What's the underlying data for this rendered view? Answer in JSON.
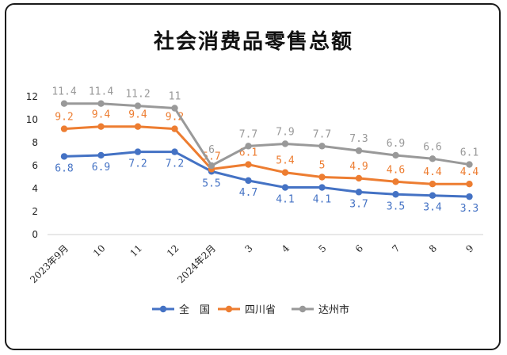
{
  "chart_data": {
    "type": "line",
    "title": "社会消费品零售总额",
    "categories": [
      "2023年9月",
      "10",
      "11",
      "12",
      "2024年2月",
      "3",
      "4",
      "5",
      "6",
      "7",
      "8",
      "9"
    ],
    "ylim": [
      0,
      12
    ],
    "yticks": [
      "0",
      "2",
      "4",
      "6",
      "8",
      "10",
      "12"
    ],
    "grid": false,
    "legend_position": "bottom",
    "series": [
      {
        "name": "全　国",
        "color": "#4472c4",
        "values": [
          6.8,
          6.9,
          7.2,
          7.2,
          5.5,
          4.7,
          4.1,
          4.1,
          3.7,
          3.5,
          3.4,
          3.3
        ],
        "labels": [
          "6.8",
          "6.9",
          "7.2",
          "7.2",
          "5.5",
          "4.7",
          "4.1",
          "4.1",
          "3.7",
          "3.5",
          "3.4",
          "3.3"
        ]
      },
      {
        "name": "四川省",
        "color": "#ed7d31",
        "values": [
          9.2,
          9.4,
          9.4,
          9.2,
          5.7,
          6.1,
          5.4,
          5.0,
          4.9,
          4.6,
          4.4,
          4.4
        ],
        "labels": [
          "9.2",
          "9.4",
          "9.4",
          "9.2",
          "5.7",
          "6.1",
          "5.4",
          "5",
          "4.9",
          "4.6",
          "4.4",
          "4.4"
        ]
      },
      {
        "name": "达州市",
        "color": "#999999",
        "values": [
          11.4,
          11.4,
          11.2,
          11.0,
          6.0,
          7.7,
          7.9,
          7.7,
          7.3,
          6.9,
          6.6,
          6.1
        ],
        "labels": [
          "11.4",
          "11.4",
          "11.2",
          "11",
          "6",
          "7.7",
          "7.9",
          "7.7",
          "7.3",
          "6.9",
          "6.6",
          "6.1"
        ]
      }
    ]
  }
}
